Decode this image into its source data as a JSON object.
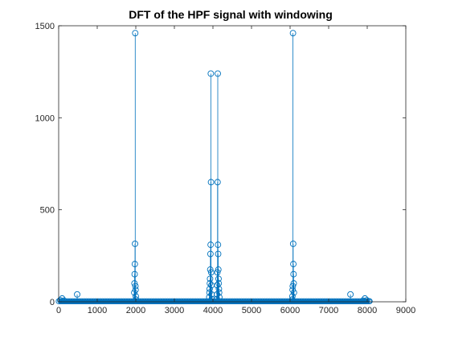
{
  "figure": {
    "title": "DFT of the HPF signal with windowing"
  },
  "colors": {
    "series": "#0072BD",
    "axes": "#262626",
    "background": "#ffffff"
  },
  "chart_data": {
    "type": "stem",
    "title": "DFT of the HPF signal with windowing",
    "xlabel": "",
    "ylabel": "",
    "xlim": [
      0,
      9000
    ],
    "ylim": [
      0,
      1500
    ],
    "xticks": [
      0,
      1000,
      2000,
      3000,
      4000,
      5000,
      6000,
      7000,
      8000,
      9000
    ],
    "yticks": [
      0,
      500,
      1000,
      1500
    ],
    "grid": false,
    "legend": "none",
    "x_extent": [
      1,
      8064
    ],
    "baseline_floor": 3,
    "series": [
      {
        "marker": "circle",
        "x": [
          40,
          90,
          140,
          480,
          1960,
          1965,
          1970,
          1975,
          1980,
          1985,
          1990,
          1995,
          2000,
          2005,
          3905,
          3910,
          3915,
          3920,
          3925,
          3930,
          3935,
          3940,
          3945,
          3950,
          3955,
          3960,
          3965,
          3970,
          4100,
          4105,
          4110,
          4115,
          4120,
          4125,
          4130,
          4135,
          4140,
          4145,
          4150,
          4155,
          4160,
          4165,
          6055,
          6060,
          6065,
          6070,
          6075,
          6080,
          6085,
          6090,
          6095,
          6100,
          7565,
          7890,
          7940,
          7990
        ],
        "y": [
          8,
          18,
          6,
          40,
          50,
          100,
          150,
          205,
          315,
          1460,
          85,
          65,
          30,
          12,
          25,
          50,
          70,
          100,
          125,
          175,
          260,
          310,
          1240,
          650,
          160,
          90,
          40,
          15,
          15,
          40,
          90,
          160,
          650,
          1240,
          310,
          260,
          175,
          125,
          100,
          70,
          50,
          25,
          12,
          30,
          65,
          85,
          1460,
          315,
          205,
          150,
          100,
          50,
          40,
          6,
          18,
          8
        ]
      }
    ]
  }
}
